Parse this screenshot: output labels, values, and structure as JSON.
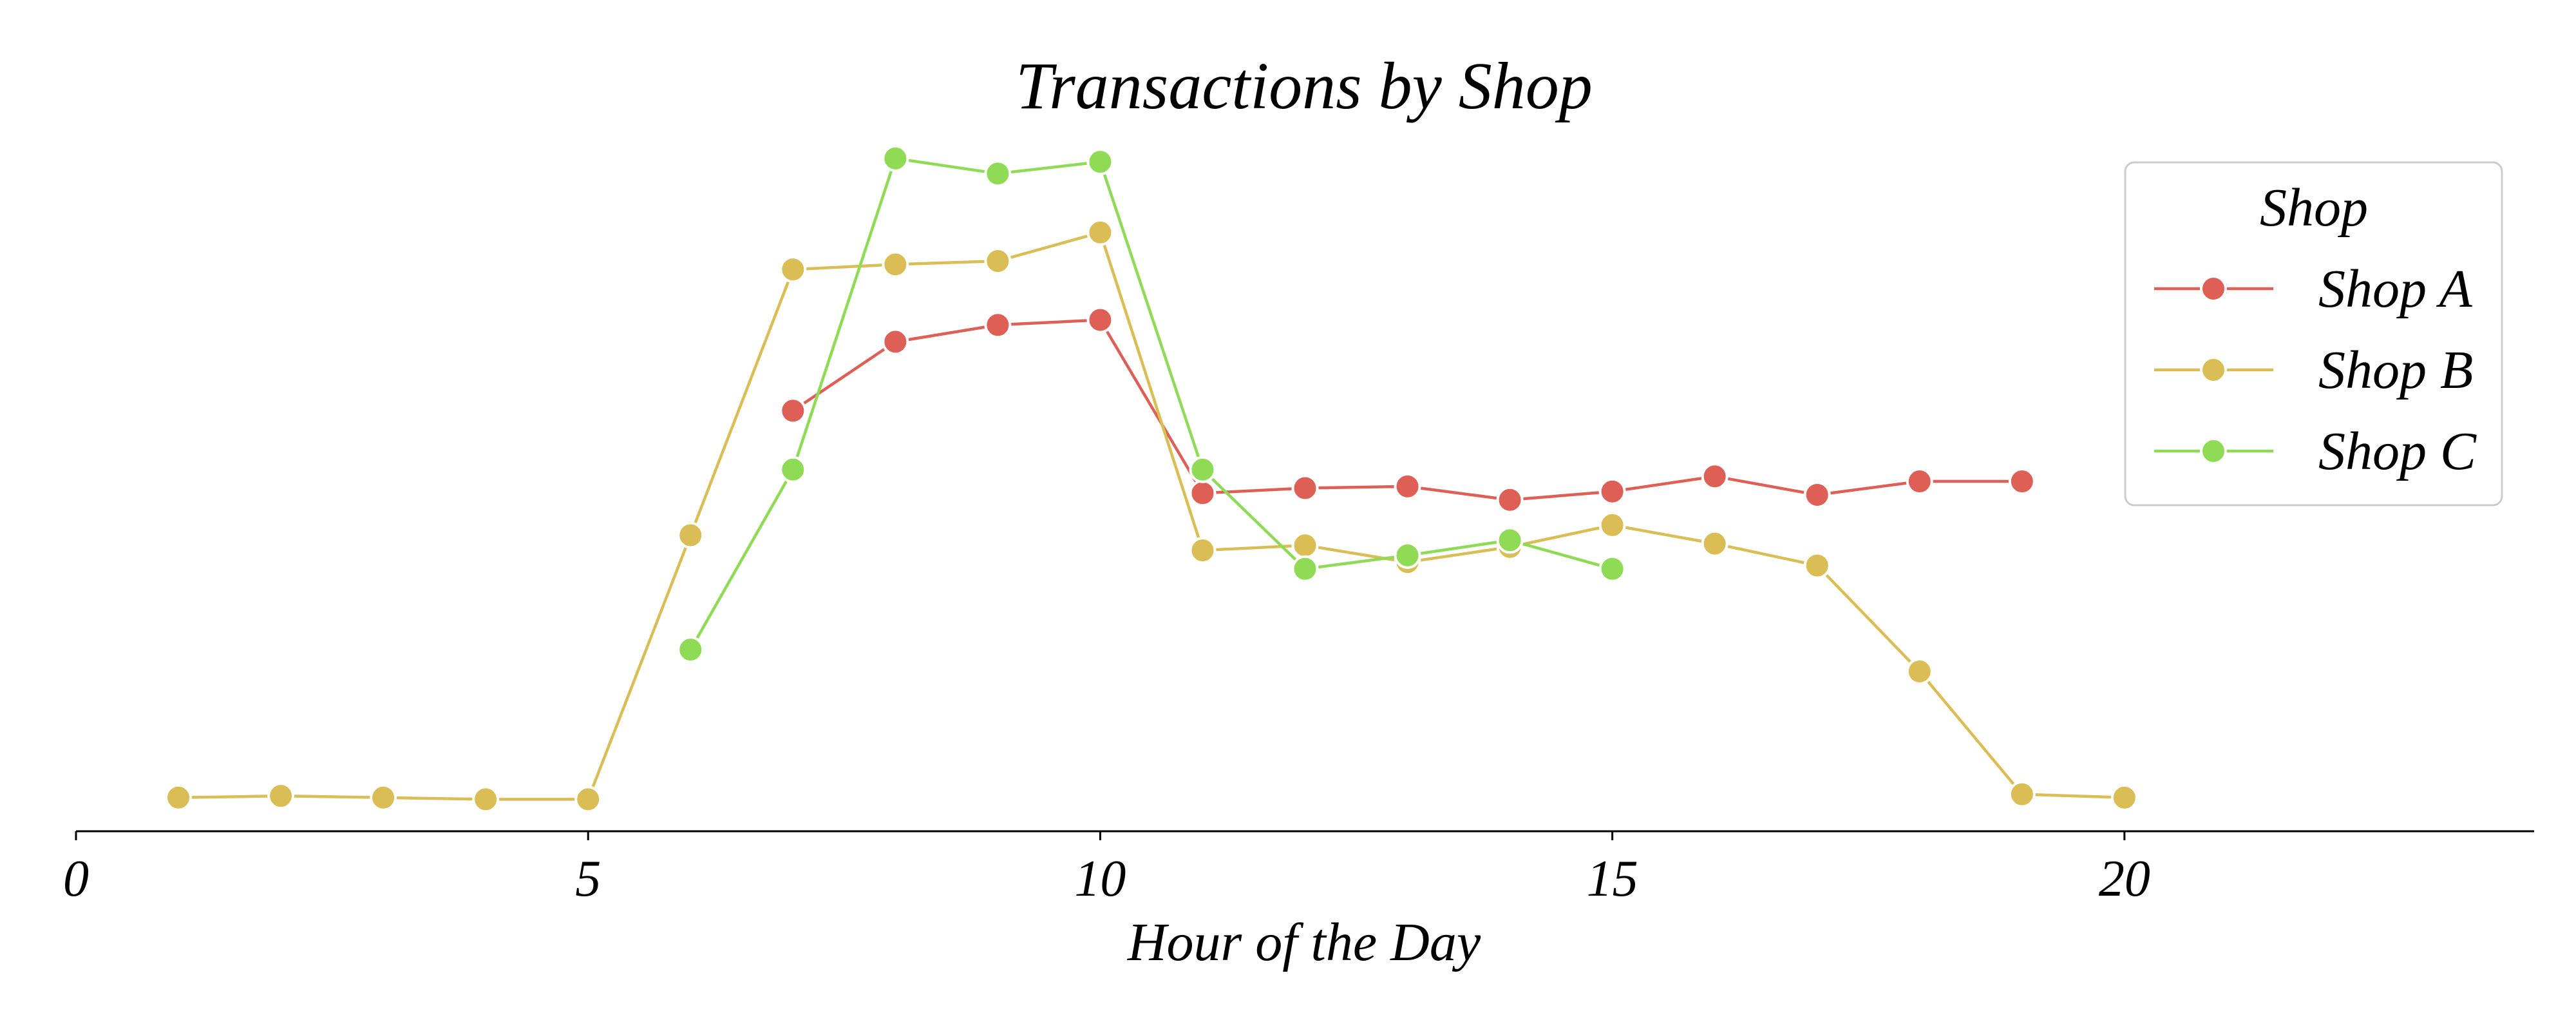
{
  "chart_data": {
    "type": "line",
    "title": "Transactions by Shop",
    "xlabel": "Hour of the Day",
    "ylabel": "",
    "xlim": [
      0,
      24
    ],
    "ylim": [
      -8,
      400
    ],
    "xticks": [
      0,
      5,
      10,
      15,
      20
    ],
    "yaxis_visible": false,
    "grid": false,
    "legend": {
      "title": "Shop",
      "placement": "top-right"
    },
    "series": [
      {
        "name": "Shop A",
        "color": "#dd5f55",
        "x": [
          7,
          8,
          9,
          10,
          11,
          12,
          13,
          14,
          15,
          16,
          17,
          18,
          19
        ],
        "y": [
          242,
          283,
          293,
          296,
          193,
          196,
          197,
          189,
          194,
          203,
          192,
          200,
          200
        ]
      },
      {
        "name": "Shop B",
        "color": "#dbbd56",
        "x": [
          1,
          2,
          3,
          4,
          5,
          6,
          7,
          8,
          9,
          10,
          11,
          12,
          13,
          14,
          15,
          16,
          17,
          18,
          19,
          20
        ],
        "y": [
          12,
          13,
          12,
          11,
          11,
          168,
          326,
          329,
          331,
          348,
          159,
          162,
          152,
          161,
          174,
          163,
          150,
          87,
          14,
          12
        ]
      },
      {
        "name": "Shop C",
        "color": "#8fdb55",
        "x": [
          6,
          7,
          8,
          9,
          10,
          11,
          12,
          13,
          14,
          15
        ],
        "y": [
          100,
          207,
          392,
          383,
          390,
          207,
          148,
          156,
          165,
          148
        ]
      }
    ]
  }
}
